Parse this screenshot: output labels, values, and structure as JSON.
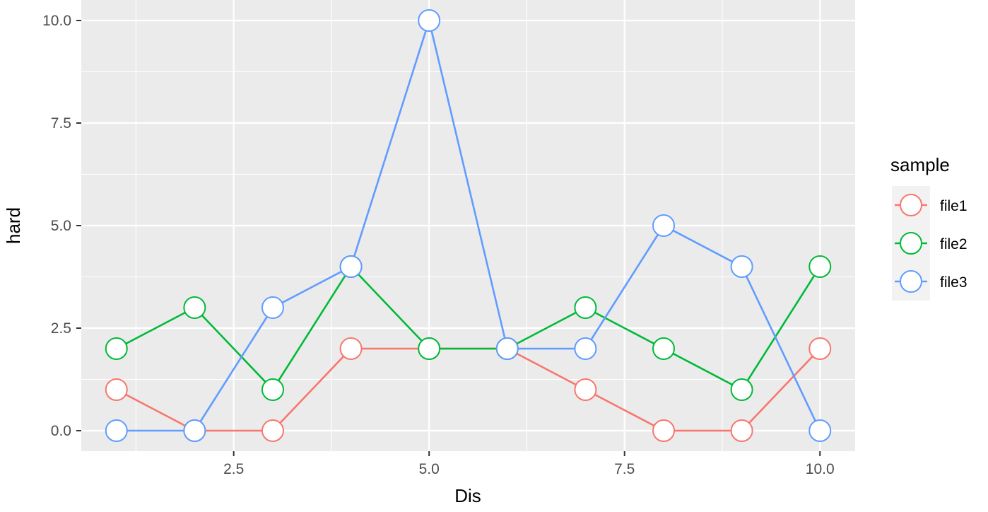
{
  "chart_data": {
    "type": "line",
    "xlabel": "Dis",
    "ylabel": "hard",
    "xlim": [
      0.55,
      10.45
    ],
    "ylim": [
      -0.5,
      10.5
    ],
    "xticks": [
      2.5,
      5.0,
      7.5,
      10.0
    ],
    "xtick_labels": [
      "2.5",
      "5.0",
      "7.5",
      "10.0"
    ],
    "yticks": [
      0.0,
      2.5,
      5.0,
      7.5,
      10.0
    ],
    "ytick_labels": [
      "0.0",
      "2.5",
      "5.0",
      "7.5",
      "10.0"
    ],
    "grid": true,
    "legend": {
      "title": "sample",
      "placement": "right"
    },
    "x": [
      1,
      2,
      3,
      4,
      5,
      6,
      7,
      8,
      9,
      10
    ],
    "series": [
      {
        "name": "file1",
        "color": "#F8766D",
        "values": [
          1,
          0,
          0,
          2,
          2,
          2,
          1,
          0,
          0,
          2
        ]
      },
      {
        "name": "file2",
        "color": "#00BA38",
        "values": [
          2,
          3,
          1,
          4,
          2,
          2,
          3,
          2,
          1,
          4
        ]
      },
      {
        "name": "file3",
        "color": "#619CFF",
        "values": [
          0,
          0,
          3,
          4,
          10,
          2,
          2,
          5,
          4,
          0
        ]
      }
    ],
    "style": {
      "panel_background": "#EBEBEB",
      "grid_color": "#FFFFFF",
      "marker_fill": "#FFFFFF"
    }
  }
}
